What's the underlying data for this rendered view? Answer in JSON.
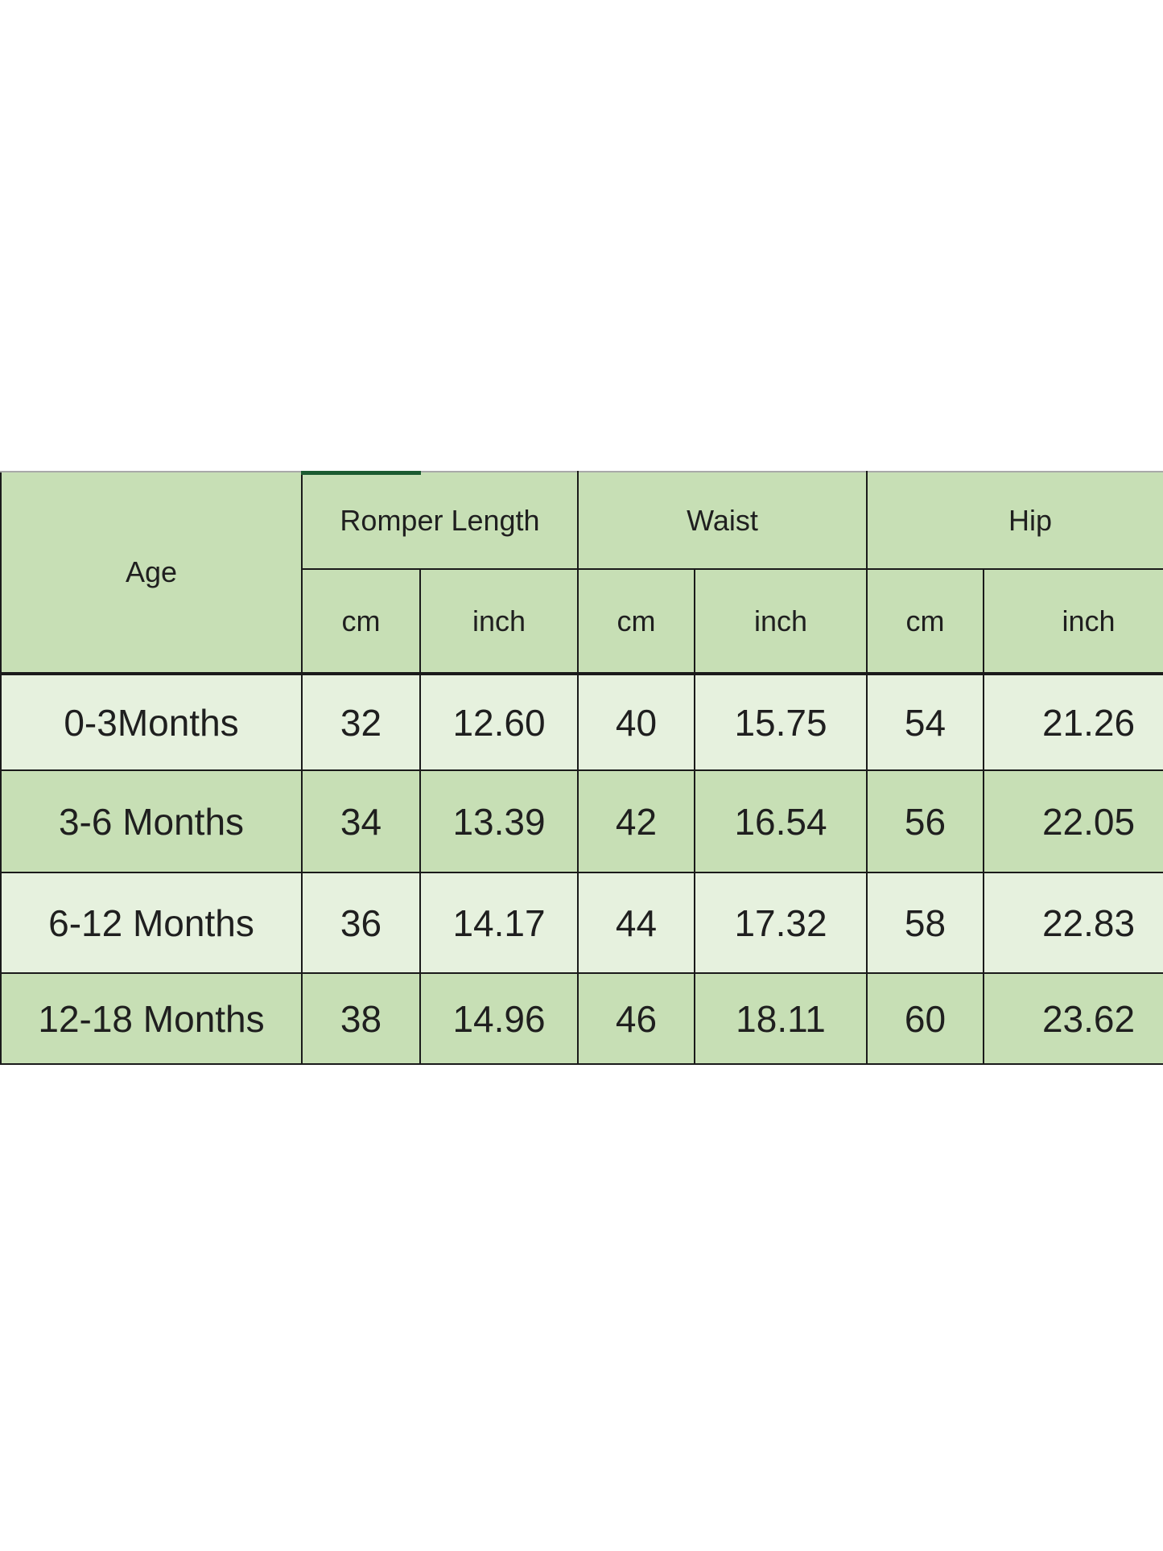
{
  "page": {
    "background": "#ffffff"
  },
  "colors": {
    "header_fill": "#c7dfb5",
    "row_light_fill": "#e6f1de",
    "row_alt_fill": "#c7dfb5",
    "grid_line": "#1a1a1a",
    "top_edge_line": "#a9a9a9",
    "top_accent_segment": "#1c5b31",
    "text": "#1f1f1f"
  },
  "chart_data": {
    "type": "table",
    "column_groups": [
      {
        "label": "Age",
        "subcolumns": []
      },
      {
        "label": "Romper Length",
        "subcolumns": [
          "cm",
          "inch"
        ]
      },
      {
        "label": "Waist",
        "subcolumns": [
          "cm",
          "inch"
        ]
      },
      {
        "label": "Hip",
        "subcolumns": [
          "cm",
          "inch"
        ]
      }
    ],
    "rows": [
      {
        "age": "0-3Months",
        "values": [
          "32",
          "12.60",
          "40",
          "15.75",
          "54",
          "21.26"
        ]
      },
      {
        "age": "3-6 Months",
        "values": [
          "34",
          "13.39",
          "42",
          "16.54",
          "56",
          "22.05"
        ]
      },
      {
        "age": "6-12 Months",
        "values": [
          "36",
          "14.17",
          "44",
          "17.32",
          "58",
          "22.83"
        ]
      },
      {
        "age": "12-18 Months",
        "values": [
          "38",
          "14.96",
          "46",
          "18.11",
          "60",
          "23.62"
        ]
      }
    ]
  }
}
